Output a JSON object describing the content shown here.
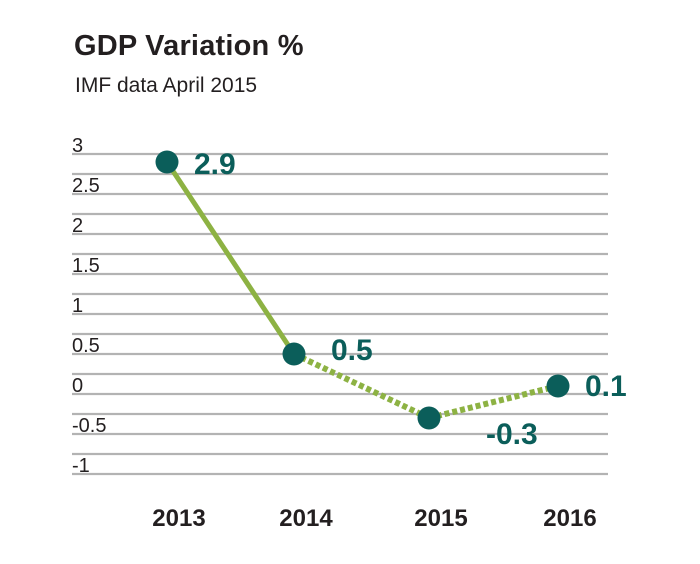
{
  "chart_data": {
    "type": "line",
    "title": "GDP Variation %",
    "subtitle": "IMF data April 2015",
    "categories": [
      "2013",
      "2014",
      "2015",
      "2016"
    ],
    "values": [
      2.9,
      0.5,
      -0.3,
      0.1
    ],
    "data_labels": [
      "2.9",
      "0.5",
      "-0.3",
      "0.1"
    ],
    "segment_styles": [
      "solid",
      "dotted",
      "dotted"
    ],
    "ylim": [
      -1,
      3
    ],
    "yticks": [
      3,
      2.5,
      2,
      1.5,
      1,
      0.5,
      0,
      -0.5,
      -1
    ],
    "ytick_labels": [
      "3",
      "2.5",
      "2",
      "1.5",
      "1",
      "0.5",
      "0",
      "-0.5",
      "-1"
    ],
    "grid": true,
    "colors": {
      "line": "#8db243",
      "marker": "#0b5e5a",
      "label": "#0b5e5a",
      "grid": "#b3b3b3",
      "text": "#231f20"
    }
  }
}
